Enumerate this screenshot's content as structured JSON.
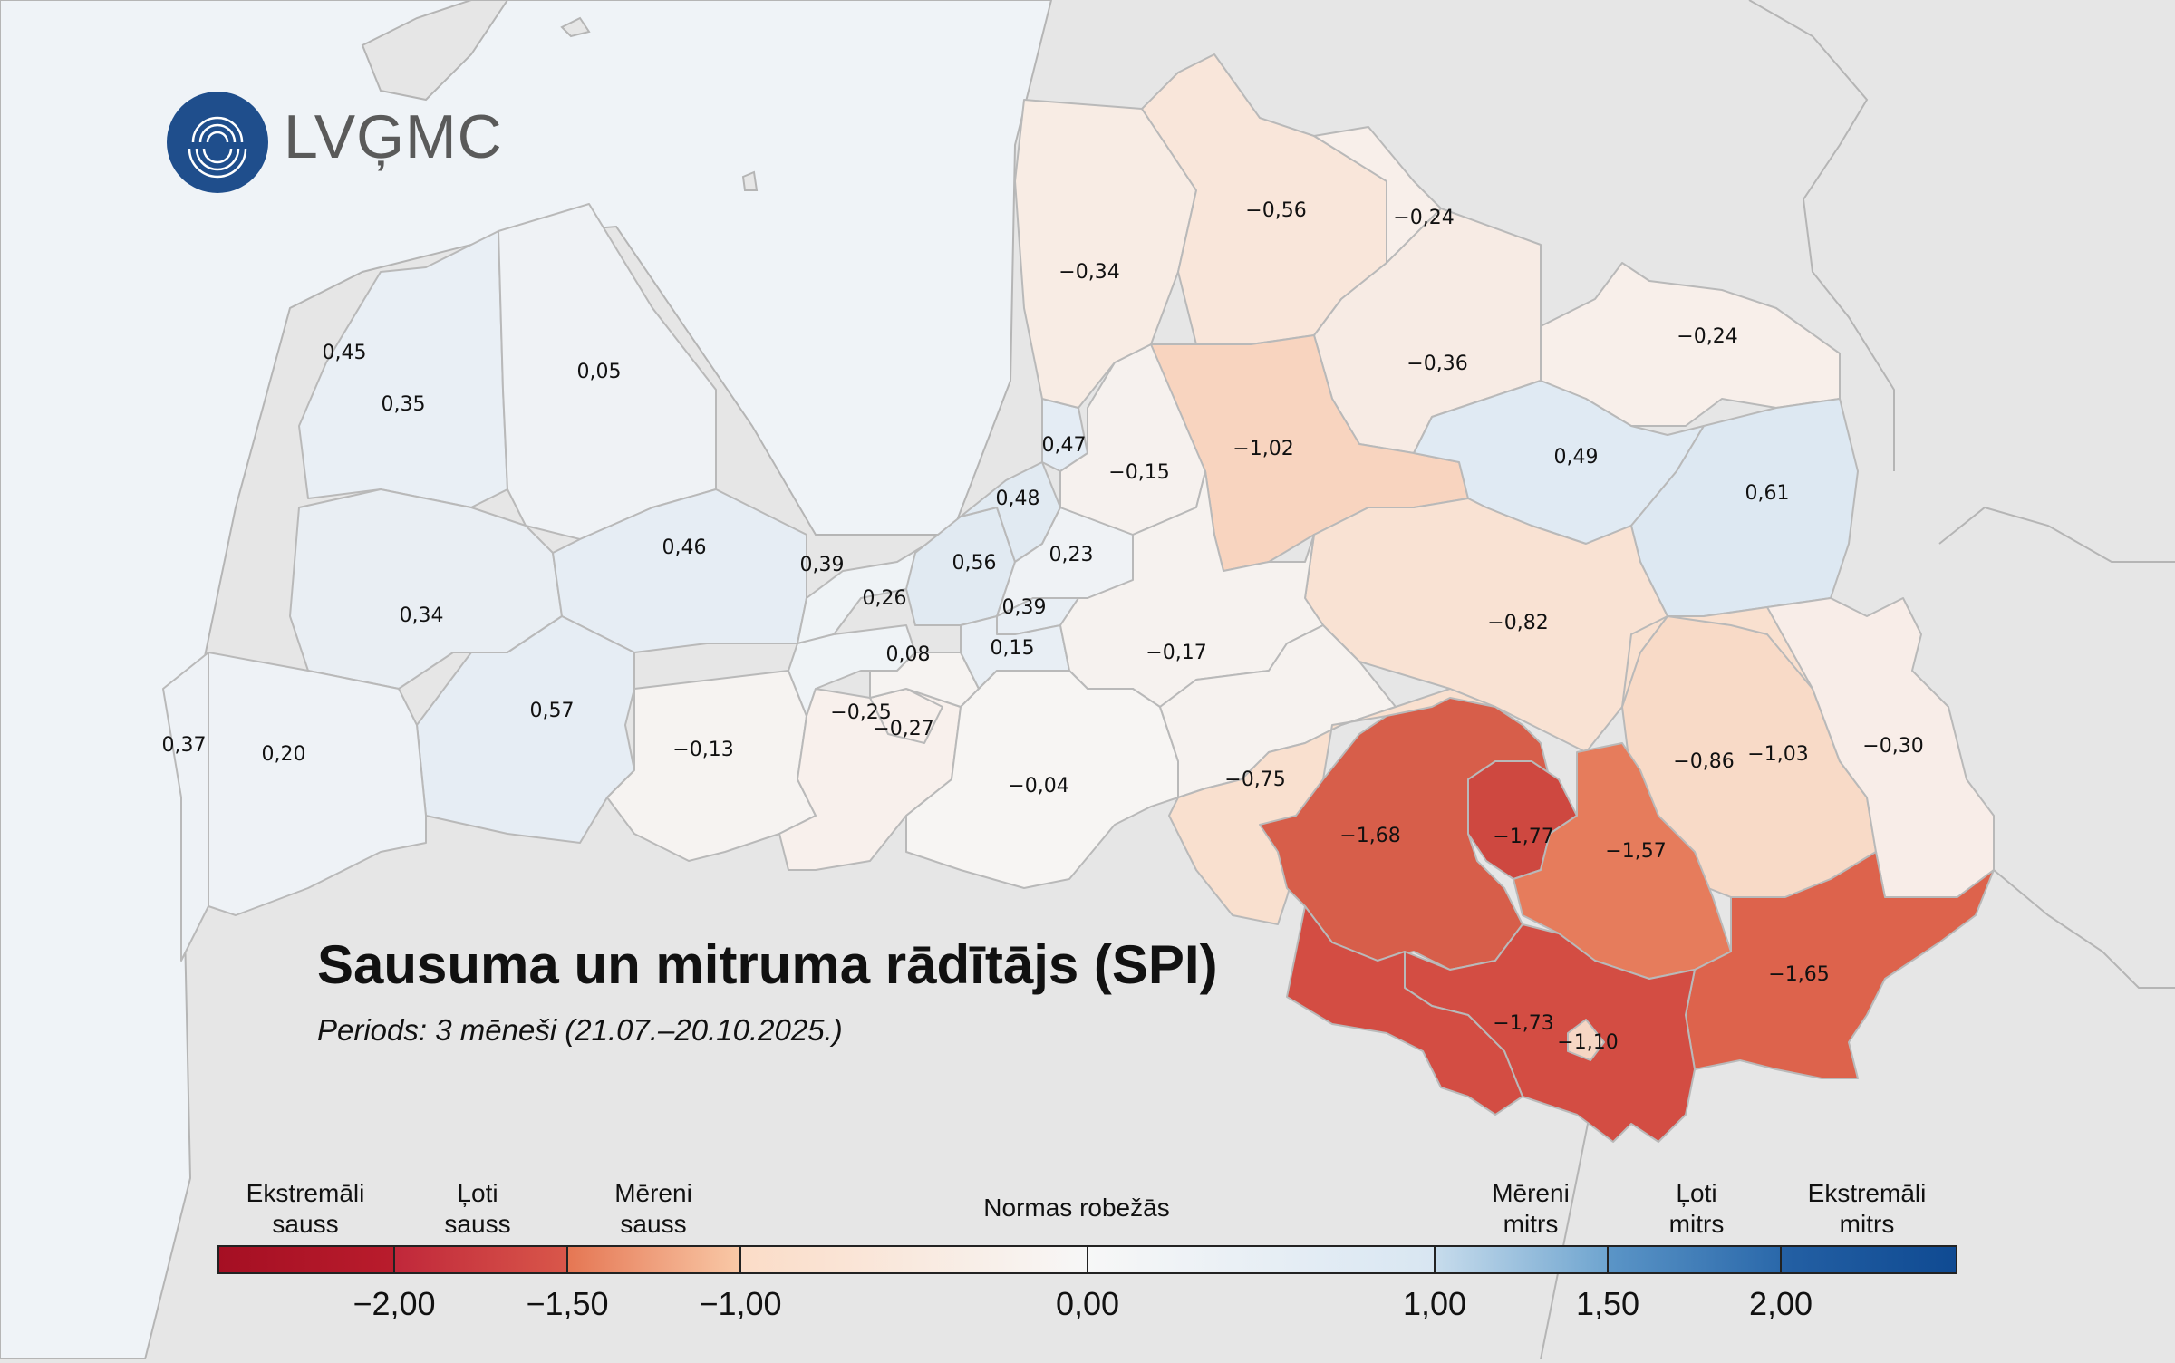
{
  "logo": {
    "text": "LVĢMC",
    "icon": "lvgmc-logo-icon"
  },
  "title": "Sausuma un mitruma rādītājs (SPI)",
  "subtitle": "Periods: 3 mēneši (21.07.–20.10.2025.)",
  "legend": {
    "categories": [
      {
        "line1": "Ekstremāli",
        "line2": "sauss"
      },
      {
        "line1": "Ļoti",
        "line2": "sauss"
      },
      {
        "line1": "Mēreni",
        "line2": "sauss"
      },
      {
        "line1": "Normas robežās",
        "line2": ""
      },
      {
        "line1": "Mēreni",
        "line2": "mitrs"
      },
      {
        "line1": "Ļoti",
        "line2": "mitrs"
      },
      {
        "line1": "Ekstremāli",
        "line2": "mitrs"
      }
    ],
    "ticks": [
      "−2,00",
      "−1,50",
      "−1,00",
      "0,00",
      "1,00",
      "1,50",
      "2,00"
    ],
    "colors": [
      "#a50f23",
      "#c8333a",
      "#e8845a",
      "#fbe2d4",
      "#f7f7f7",
      "#dce9f3",
      "#8fb8d9",
      "#3f7db9",
      "#174f96"
    ]
  },
  "regions": [
    {
      "label": "0,45"
    },
    {
      "label": "0,35"
    },
    {
      "label": "0,05"
    },
    {
      "label": "0,34"
    },
    {
      "label": "0,46"
    },
    {
      "label": "0,57"
    },
    {
      "label": "0,37"
    },
    {
      "label": "0,20"
    },
    {
      "label": "−0,13"
    },
    {
      "label": "0,39"
    },
    {
      "label": "0,26"
    },
    {
      "label": "0,08"
    },
    {
      "label": "−0,25"
    },
    {
      "label": "−0,27"
    },
    {
      "label": "0,56"
    },
    {
      "label": "0,48"
    },
    {
      "label": "0,47"
    },
    {
      "label": "0,23"
    },
    {
      "label": "0,39"
    },
    {
      "label": "0,15"
    },
    {
      "label": "−0,15"
    },
    {
      "label": "−0,34"
    },
    {
      "label": "−0,56"
    },
    {
      "label": "−0,24"
    },
    {
      "label": "−0,24"
    },
    {
      "label": "−0,36"
    },
    {
      "label": "−1,02"
    },
    {
      "label": "0,49"
    },
    {
      "label": "0,61"
    },
    {
      "label": "−0,82"
    },
    {
      "label": "−0,17"
    },
    {
      "label": "−0,04"
    },
    {
      "label": "−0,75"
    },
    {
      "label": "−1,68"
    },
    {
      "label": "−1,77"
    },
    {
      "label": "−1,57"
    },
    {
      "label": "−0,86"
    },
    {
      "label": "−1,03"
    },
    {
      "label": "−0,30"
    },
    {
      "label": "−1,65"
    },
    {
      "label": "−1,73"
    },
    {
      "label": "−1,10"
    }
  ]
}
